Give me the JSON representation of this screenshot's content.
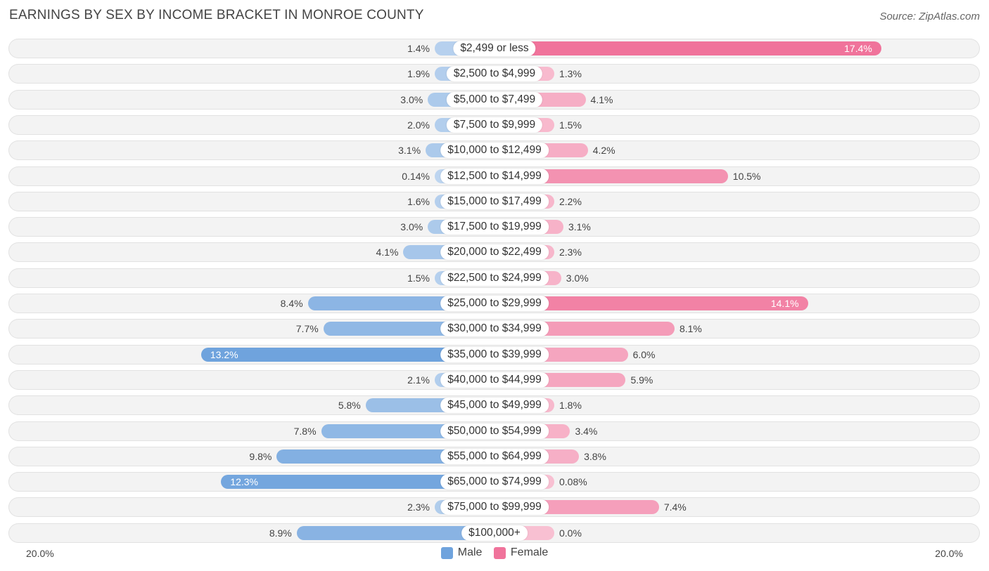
{
  "title": "EARNINGS BY SEX BY INCOME BRACKET IN MONROE COUNTY",
  "source": "Source: ZipAtlas.com",
  "chart_data": {
    "type": "bar",
    "orientation": "horizontal-diverging",
    "categories": [
      "$2,499 or less",
      "$2,500 to $4,999",
      "$5,000 to $7,499",
      "$7,500 to $9,999",
      "$10,000 to $12,499",
      "$12,500 to $14,999",
      "$15,000 to $17,499",
      "$17,500 to $19,999",
      "$20,000 to $22,499",
      "$22,500 to $24,999",
      "$25,000 to $29,999",
      "$30,000 to $34,999",
      "$35,000 to $39,999",
      "$40,000 to $44,999",
      "$45,000 to $49,999",
      "$50,000 to $54,999",
      "$55,000 to $64,999",
      "$65,000 to $74,999",
      "$75,000 to $99,999",
      "$100,000+"
    ],
    "series": [
      {
        "name": "Male",
        "color": "#6fa3dd",
        "values": [
          1.4,
          1.9,
          3.0,
          2.0,
          3.1,
          0.14,
          1.6,
          3.0,
          4.1,
          1.5,
          8.4,
          7.7,
          13.2,
          2.1,
          5.8,
          7.8,
          9.8,
          12.3,
          2.3,
          8.9
        ],
        "labels": [
          "1.4%",
          "1.9%",
          "3.0%",
          "2.0%",
          "3.1%",
          "0.14%",
          "1.6%",
          "3.0%",
          "4.1%",
          "1.5%",
          "8.4%",
          "7.7%",
          "13.2%",
          "2.1%",
          "5.8%",
          "7.8%",
          "9.8%",
          "12.3%",
          "2.3%",
          "8.9%"
        ]
      },
      {
        "name": "Female",
        "color": "#f0739b",
        "values": [
          17.4,
          1.3,
          4.1,
          1.5,
          4.2,
          10.5,
          2.2,
          3.1,
          2.3,
          3.0,
          14.1,
          8.1,
          6.0,
          5.9,
          1.8,
          3.4,
          3.8,
          0.08,
          7.4,
          0.0
        ],
        "labels": [
          "17.4%",
          "1.3%",
          "4.1%",
          "1.5%",
          "4.2%",
          "10.5%",
          "2.2%",
          "3.1%",
          "2.3%",
          "3.0%",
          "14.1%",
          "8.1%",
          "6.0%",
          "5.9%",
          "1.8%",
          "3.4%",
          "3.8%",
          "0.08%",
          "7.4%",
          "0.0%"
        ]
      }
    ],
    "axis": {
      "min_label": "20.0%",
      "max_label": "20.0%",
      "max": 20.0
    },
    "legend": [
      "Male",
      "Female"
    ]
  }
}
